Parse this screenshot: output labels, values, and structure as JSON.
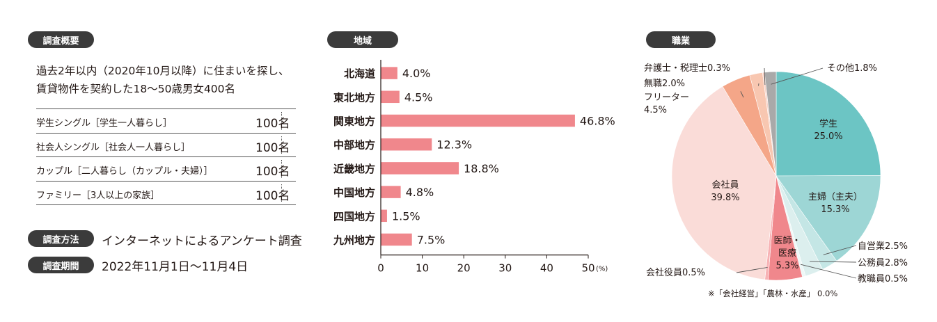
{
  "survey": {
    "overview_label": "調査概要",
    "summary_lines": [
      "過去2年以内（2020年10月以降）に住まいを探し、",
      "賃貸物件を契約した18～50歳男女400名"
    ],
    "segments": [
      {
        "label": "学生シングル［学生一人暮らし］",
        "count": "100名"
      },
      {
        "label": "社会人シングル［社会人一人暮らし］",
        "count": "100名"
      },
      {
        "label": "カップル［二人暮らし（カップル・夫婦）］",
        "count": "100名"
      },
      {
        "label": "ファミリー［3人以上の家族］",
        "count": "100名"
      }
    ],
    "method_label": "調査方法",
    "method_value": "インターネットによるアンケート調査",
    "period_label": "調査期間",
    "period_value": "2022年11月1日～11月4日"
  },
  "region_section": {
    "label": "地域"
  },
  "occupation_section": {
    "label": "職業",
    "footnote": "※「会社経営」「農林・水産」 0.0%"
  },
  "chart_data": [
    {
      "type": "bar",
      "orientation": "horizontal",
      "categories": [
        "北海道",
        "東北地方",
        "関東地方",
        "中部地方",
        "近畿地方",
        "中国地方",
        "四国地方",
        "九州地方"
      ],
      "values": [
        4.0,
        4.5,
        46.8,
        12.3,
        18.8,
        4.8,
        1.5,
        7.5
      ],
      "value_labels": [
        "4.0%",
        "4.5%",
        "46.8%",
        "12.3%",
        "18.8%",
        "4.8%",
        "1.5%",
        "7.5%"
      ],
      "xlim": [
        0,
        50
      ],
      "xticks": [
        "0",
        "10",
        "20",
        "30",
        "40",
        "50"
      ],
      "xunit": "(%)",
      "bar_color": "#f0878c"
    },
    {
      "type": "pie",
      "slices": [
        {
          "label": "学生",
          "value": 25.0,
          "value_label": "25.0%",
          "color": "#6cc5c4"
        },
        {
          "label": "主婦（主夫）",
          "value": 15.3,
          "value_label": "15.3%",
          "color": "#9dd6d5"
        },
        {
          "label": "自営業",
          "value": 2.5,
          "value_label": "2.5%",
          "color": "#c4e6e5"
        },
        {
          "label": "公務員",
          "value": 2.8,
          "value_label": "2.8%",
          "color": "#dcefee"
        },
        {
          "label": "教職員",
          "value": 0.5,
          "value_label": "0.5%",
          "color": "#eef8f7"
        },
        {
          "label": "医師・医療",
          "value": 5.3,
          "value_label": "5.3%",
          "color": "#f0878c"
        },
        {
          "label": "会社役員",
          "value": 0.5,
          "value_label": "0.5%",
          "color": "#f7b2b4"
        },
        {
          "label": "会社員",
          "value": 39.8,
          "value_label": "39.8%",
          "color": "#fadcd8"
        },
        {
          "label": "フリーター",
          "value": 4.5,
          "value_label": "4.5%",
          "color": "#f4a688"
        },
        {
          "label": "無職",
          "value": 2.0,
          "value_label": "2.0%",
          "color": "#f8c7b1"
        },
        {
          "label": "弁護士・税理士",
          "value": 0.3,
          "value_label": "0.3%",
          "color": "#f6d2c7"
        },
        {
          "label": "その他",
          "value": 1.8,
          "value_label": "1.8%",
          "color": "#a9a9a9"
        }
      ]
    }
  ]
}
